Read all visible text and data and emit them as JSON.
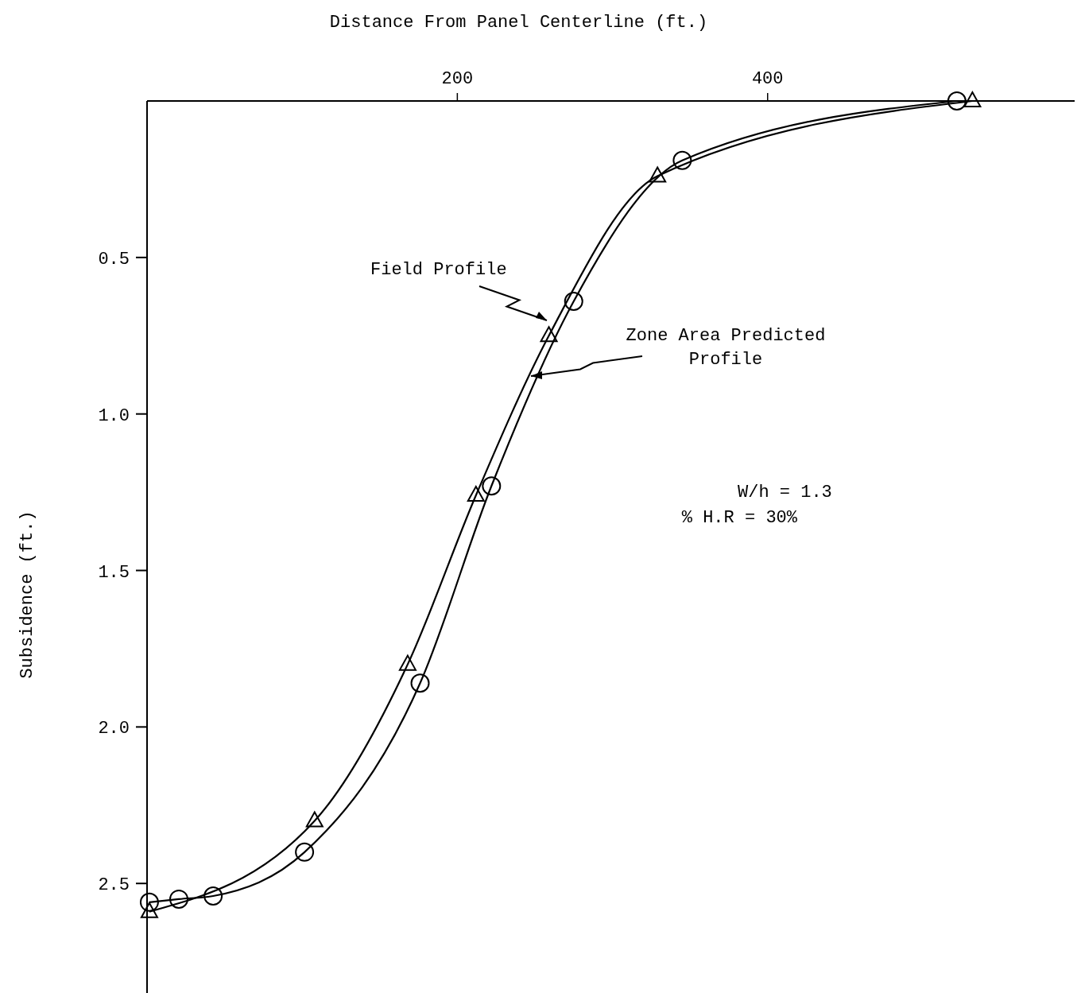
{
  "chart_data": {
    "type": "line",
    "xlabel": "Distance From Panel Centerline (ft.)",
    "ylabel": "Subsidence (ft.)",
    "xlim": [
      0,
      602
    ],
    "xticks": [
      200,
      400
    ],
    "ylim": [
      2.85,
      0
    ],
    "yticks": [
      0.5,
      {
        "value": 1,
        "label": "1.0"
      },
      1.5,
      {
        "value": 2,
        "label": "2.0"
      },
      2.5
    ],
    "series": [
      {
        "name": "Field Profile",
        "color": "#000000",
        "marker": "triangle",
        "x": [
          1.5,
          108,
          168,
          212,
          259,
          329,
          532
        ],
        "values": [
          2.59,
          2.3,
          1.8,
          1.26,
          0.75,
          0.24,
          0.0
        ]
      },
      {
        "name": "Zone Area Predicted Profile",
        "color": "#000000",
        "marker": "circle",
        "x": [
          1.5,
          20.5,
          42.6,
          101.5,
          176,
          222,
          275,
          345,
          522
        ],
        "values": [
          2.56,
          2.55,
          2.54,
          2.4,
          1.86,
          1.23,
          0.64,
          0.19,
          0.0
        ]
      }
    ],
    "annotations": [
      "W/h = 1.3",
      "% H.R = 30%"
    ],
    "grid": false
  }
}
